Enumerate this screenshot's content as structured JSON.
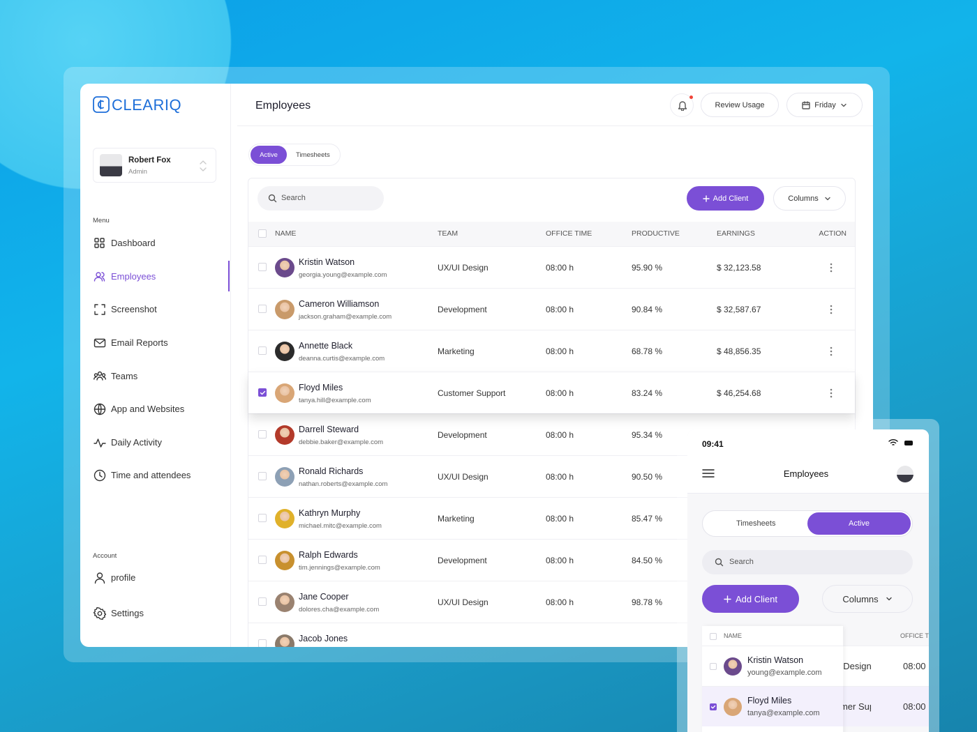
{
  "brand": "CLEARIQ",
  "user": {
    "name": "Robert Fox",
    "role": "Admin"
  },
  "sidebar": {
    "menu_title": "Menu",
    "menu": [
      "Dashboard",
      "Employees",
      "Screenshot",
      "Email Reports",
      "Teams",
      "App and Websites",
      "Daily Activity",
      "Time and attendees"
    ],
    "account_title": "Account",
    "account": [
      "profile",
      "Settings"
    ]
  },
  "header": {
    "title": "Employees",
    "review": "Review Usage",
    "day": "Friday"
  },
  "tabs": [
    "Active",
    "Timesheets"
  ],
  "toolbar": {
    "search": "Search",
    "add": "Add Client",
    "columns": "Columns"
  },
  "table": {
    "columns": [
      "NAME",
      "TEAM",
      "OFFICE TIME",
      "PRODUCTIVE",
      "EARNINGS",
      "ACTION"
    ],
    "rows": [
      {
        "name": "Kristin Watson",
        "email": "georgia.young@example.com",
        "team": "UX/UI Design",
        "office_time": "08:00 h",
        "productive": "95.90 %",
        "earnings": "$ 32,123.58"
      },
      {
        "name": "Cameron Williamson",
        "email": "jackson.graham@example.com",
        "team": "Development",
        "office_time": "08:00 h",
        "productive": "90.84 %",
        "earnings": "$ 32,587.67"
      },
      {
        "name": "Annette Black",
        "email": "deanna.curtis@example.com",
        "team": "Marketing",
        "office_time": "08:00 h",
        "productive": "68.78 %",
        "earnings": "$ 48,856.35"
      },
      {
        "name": "Floyd Miles",
        "email": "tanya.hill@example.com",
        "team": "Customer Support",
        "office_time": "08:00 h",
        "productive": "83.24 %",
        "earnings": "$ 46,254.68",
        "checked": true
      },
      {
        "name": "Darrell Steward",
        "email": "debbie.baker@example.com",
        "team": "Development",
        "office_time": "08:00 h",
        "productive": "95.34 %"
      },
      {
        "name": "Ronald Richards",
        "email": "nathan.roberts@example.com",
        "team": "UX/UI Design",
        "office_time": "08:00 h",
        "productive": "90.50 %"
      },
      {
        "name": "Kathryn Murphy",
        "email": "michael.mitc@example.com",
        "team": "Marketing",
        "office_time": "08:00 h",
        "productive": "85.47 %"
      },
      {
        "name": "Ralph Edwards",
        "email": "tim.jennings@example.com",
        "team": "Development",
        "office_time": "08:00 h",
        "productive": "84.50 %"
      },
      {
        "name": "Jane Cooper",
        "email": "dolores.cha@example.com",
        "team": "UX/UI Design",
        "office_time": "08:00 h",
        "productive": "98.78 %"
      },
      {
        "name": "Jacob Jones"
      }
    ]
  },
  "mobile": {
    "time": "09:41",
    "title": "Employees",
    "tabs": [
      "Timesheets",
      "Active"
    ],
    "search": "Search",
    "add": "Add Client",
    "columns": "Columns",
    "table": {
      "columns": [
        "NAME",
        "OFFICE TIME"
      ],
      "rows": [
        {
          "name": "Kristin Watson",
          "email": "young@example.com",
          "team": "UX/UI Design",
          "office_time": "08:00"
        },
        {
          "name": "Floyd Miles",
          "email": "tanya@example.com",
          "team": "Customer Support",
          "office_time": "08:00",
          "checked": true
        }
      ]
    }
  }
}
